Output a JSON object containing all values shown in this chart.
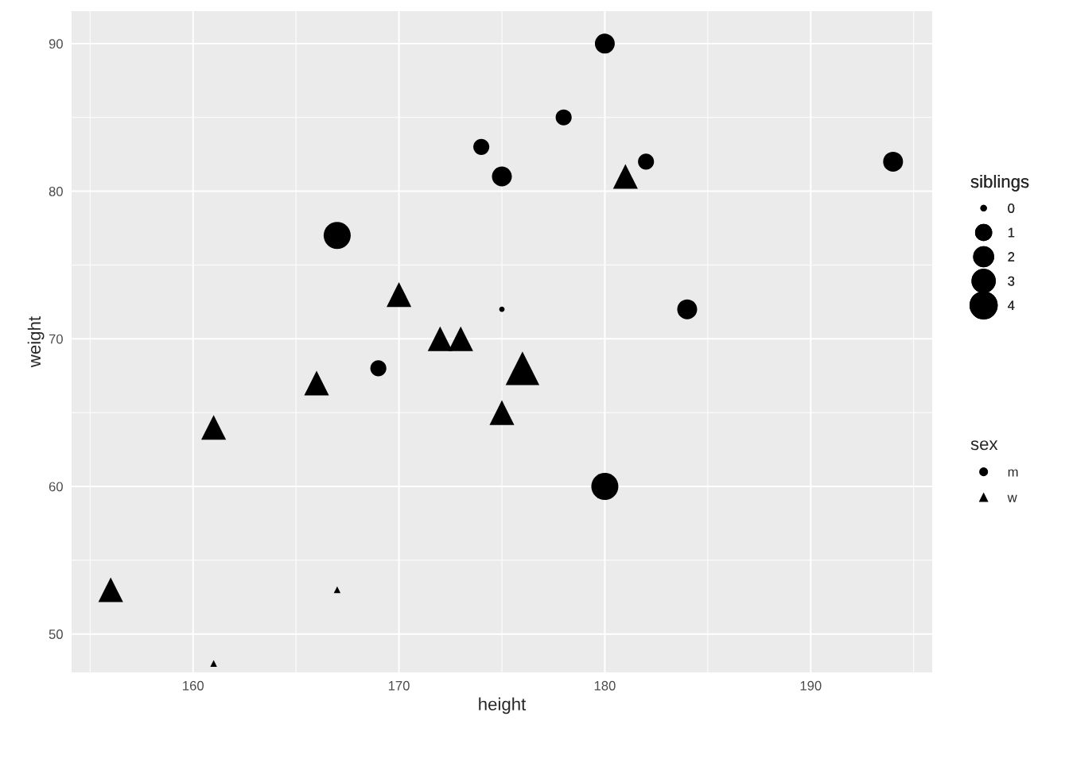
{
  "chart_data": {
    "type": "bubble",
    "xlabel": "height",
    "ylabel": "weight",
    "legend_title": [
      "siblings",
      "sex"
    ],
    "xlim": [
      154.1,
      195.9
    ],
    "ylim": [
      47.4,
      92.2
    ],
    "xticks": [
      160,
      170,
      180,
      190
    ],
    "yticks": [
      50,
      60,
      70,
      80,
      90
    ],
    "grid": true,
    "legend": "right",
    "size_legend": [
      {
        "value": 0.04,
        "label": "0"
      },
      {
        "value": 0.35,
        "label": "1"
      },
      {
        "value": 0.54,
        "label": "2"
      },
      {
        "value": 0.73,
        "label": "3"
      },
      {
        "value": 1,
        "label": "4"
      }
    ],
    "series": [
      {
        "name": "m",
        "color": "#000000",
        "marker": "circle",
        "x": [
          180,
          178,
          174,
          175,
          182,
          194,
          167,
          175,
          184,
          169,
          180
        ],
        "values": [
          90,
          85,
          83,
          81,
          82,
          82,
          77,
          72,
          72,
          68,
          60
        ],
        "sizes": [
          0.54,
          0.35,
          0.35,
          0.54,
          0.35,
          0.54,
          1,
          0.04,
          0.54,
          0.35,
          1
        ]
      },
      {
        "name": "w",
        "color": "#000000",
        "marker": "triangle",
        "x": [
          181,
          170,
          172,
          173,
          176,
          175,
          166,
          161,
          156,
          167,
          161
        ],
        "values": [
          81,
          73,
          70,
          70,
          68,
          65,
          67,
          64,
          53,
          53,
          48
        ],
        "sizes": [
          0.54,
          0.54,
          0.54,
          0.54,
          1,
          0.54,
          0.54,
          0.54,
          0.54,
          0.04,
          0.04
        ]
      }
    ]
  }
}
